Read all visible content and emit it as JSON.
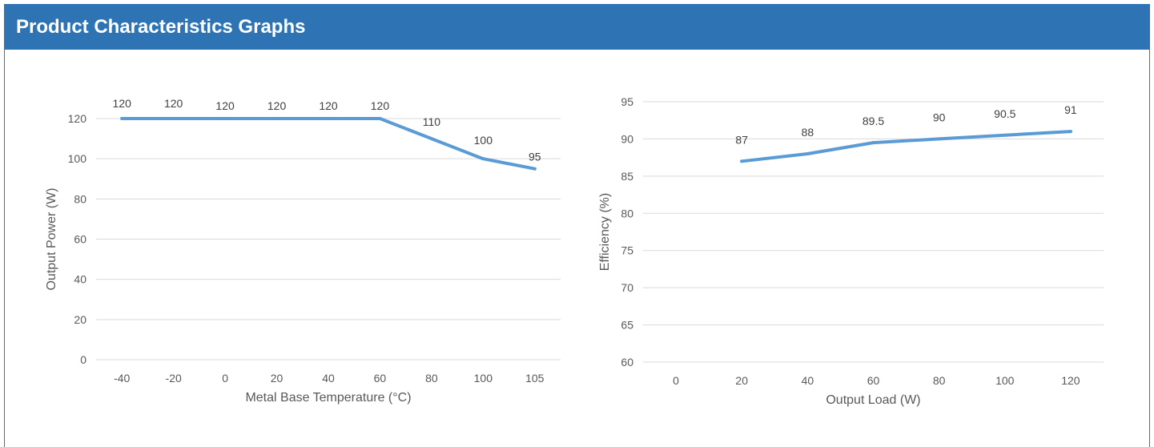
{
  "header": {
    "title": "Product Characteristics Graphs"
  },
  "colors": {
    "header_bg": "#2e74b5",
    "line": "#5b9bd5",
    "grid": "#d9d9d9"
  },
  "chart_data": [
    {
      "type": "line",
      "categories": [
        "-40",
        "-20",
        "0",
        "20",
        "40",
        "60",
        "80",
        "100",
        "105"
      ],
      "x": [
        -40,
        -20,
        0,
        20,
        40,
        60,
        80,
        100,
        105
      ],
      "series": [
        {
          "values": [
            120,
            120,
            120,
            120,
            120,
            120,
            110,
            100,
            95
          ]
        }
      ],
      "data_labels": [
        "120",
        "120",
        "120",
        "120",
        "120",
        "120",
        "110",
        "100",
        "95"
      ],
      "xlabel": "Metal Base Temperature (°C)",
      "ylabel": "Output  Power (W)",
      "ylim": [
        0,
        120
      ],
      "yticks": [
        0,
        20,
        40,
        60,
        80,
        100,
        120
      ],
      "grid": true
    },
    {
      "type": "line",
      "categories": [
        "0",
        "20",
        "40",
        "60",
        "80",
        "100",
        "120"
      ],
      "x": [
        0,
        20,
        40,
        60,
        80,
        100,
        120
      ],
      "series": [
        {
          "values": [
            null,
            87,
            88,
            89.5,
            90,
            90.5,
            91
          ]
        }
      ],
      "data_labels": [
        "",
        "87",
        "88",
        "89.5",
        "90",
        "90.5",
        "91"
      ],
      "xlabel": "Output Load (W)",
      "ylabel": "Efficiency (%)",
      "ylim": [
        60,
        95
      ],
      "yticks": [
        60,
        65,
        70,
        75,
        80,
        85,
        90,
        95
      ],
      "grid": true
    }
  ]
}
